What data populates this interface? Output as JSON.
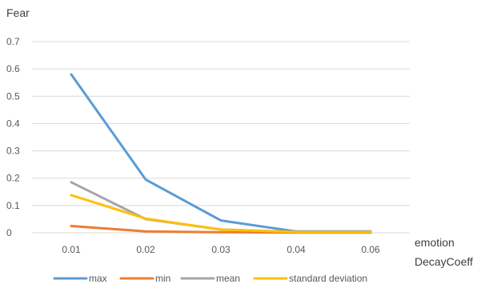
{
  "chart_data": {
    "type": "line",
    "title": "",
    "ylabel": "Fear",
    "xlabel": [
      "emotion",
      "DecayCoeff"
    ],
    "categories": [
      "0.01",
      "0.02",
      "0.03",
      "0.04",
      "0.06"
    ],
    "ylim": [
      0,
      0.7
    ],
    "yticks": [
      "0",
      "0.1",
      "0.2",
      "0.3",
      "0.4",
      "0.5",
      "0.6",
      "0.7"
    ],
    "grid": true,
    "legend_position": "bottom",
    "series": [
      {
        "name": "max",
        "color": "#5b9bd5",
        "values": [
          0.58,
          0.195,
          0.045,
          0.005,
          0.005
        ]
      },
      {
        "name": "min",
        "color": "#ed7d31",
        "values": [
          0.025,
          0.005,
          0.002,
          0.001,
          0.001
        ]
      },
      {
        "name": "mean",
        "color": "#a5a5a5",
        "values": [
          0.185,
          0.05,
          0.012,
          0.003,
          0.003
        ]
      },
      {
        "name": "standard deviation",
        "color": "#ffc000",
        "values": [
          0.138,
          0.052,
          0.012,
          0.003,
          0.003
        ]
      }
    ]
  }
}
